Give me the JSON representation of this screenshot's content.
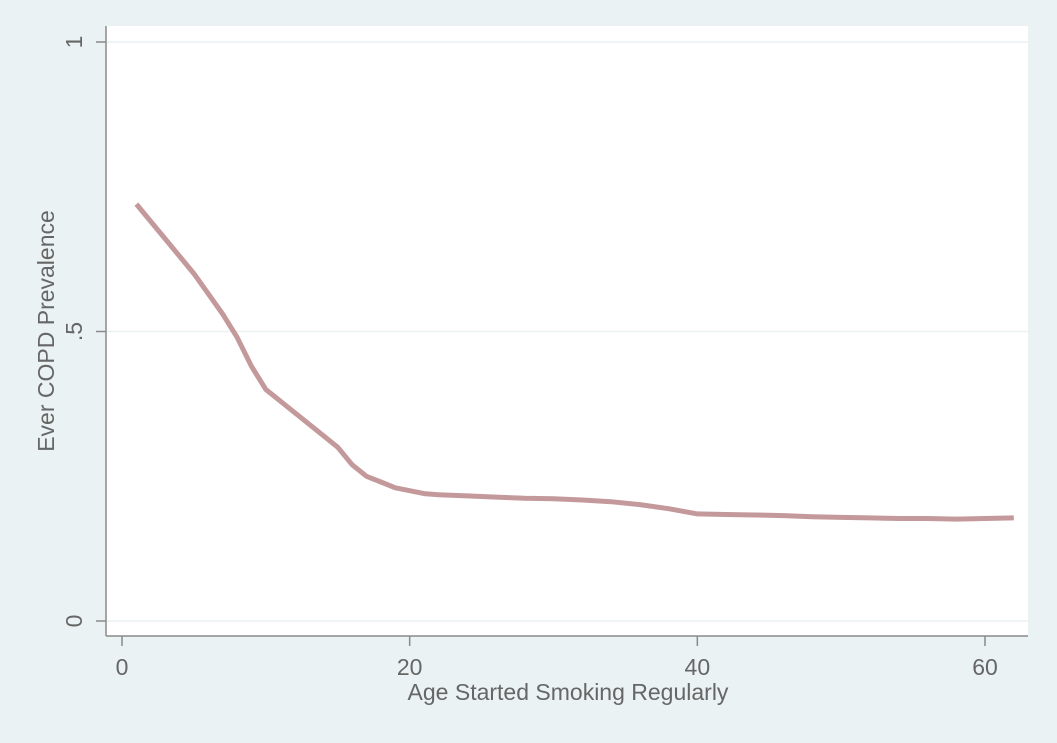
{
  "chart_data": {
    "type": "line",
    "title": "",
    "xlabel": "Age Started Smoking Regularly",
    "ylabel": "Ever COPD Prevalence",
    "xlim": [
      0,
      62
    ],
    "ylim": [
      0,
      1
    ],
    "x_ticks": [
      {
        "value": 0,
        "label": "0"
      },
      {
        "value": 20,
        "label": "20"
      },
      {
        "value": 40,
        "label": "40"
      },
      {
        "value": 60,
        "label": "60"
      }
    ],
    "y_ticks": [
      {
        "value": 0,
        "label": "0"
      },
      {
        "value": 0.5,
        "label": ".5"
      },
      {
        "value": 1,
        "label": "1"
      }
    ],
    "grid": "horizontal",
    "legend": "none",
    "colors": {
      "background": "#eaf2f3",
      "plot_area": "#ffffff",
      "line": "#c4999b",
      "axis": "#8a8a8a",
      "grid": "#eaf2f3",
      "text": "#666666"
    },
    "series": [
      {
        "x": [
          1,
          3,
          5,
          7,
          8,
          9,
          10,
          12,
          14,
          15,
          16,
          17,
          18,
          19,
          20,
          21,
          22,
          24,
          26,
          28,
          30,
          32,
          34,
          36,
          38,
          40,
          42,
          44,
          46,
          48,
          50,
          52,
          54,
          56,
          58,
          60,
          62
        ],
        "y": [
          0.72,
          0.66,
          0.6,
          0.53,
          0.49,
          0.44,
          0.4,
          0.36,
          0.32,
          0.3,
          0.27,
          0.25,
          0.24,
          0.23,
          0.225,
          0.22,
          0.218,
          0.216,
          0.214,
          0.212,
          0.211,
          0.209,
          0.206,
          0.201,
          0.194,
          0.185,
          0.184,
          0.183,
          0.182,
          0.18,
          0.179,
          0.178,
          0.177,
          0.177,
          0.176,
          0.177,
          0.178
        ]
      }
    ]
  }
}
